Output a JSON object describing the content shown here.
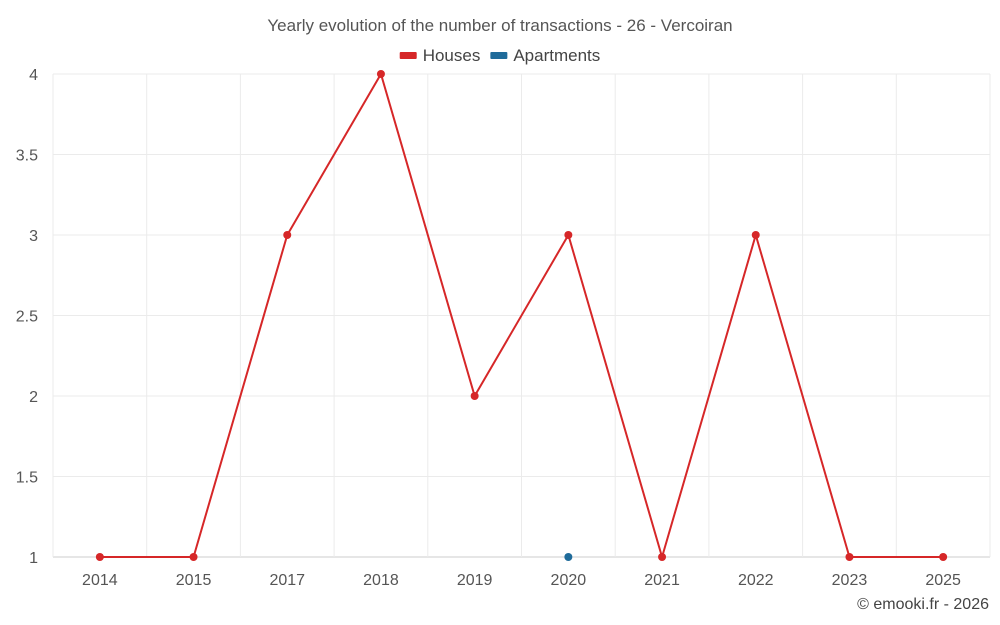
{
  "chart_data": {
    "type": "line",
    "title": "Yearly evolution of the number of transactions - 26 - Vercoiran",
    "categories": [
      "2014",
      "2015",
      "2017",
      "2018",
      "2019",
      "2020",
      "2021",
      "2022",
      "2023",
      "2025"
    ],
    "ylim": [
      1,
      4
    ],
    "yticks": [
      1,
      1.5,
      2,
      2.5,
      3,
      3.5,
      4
    ],
    "ytick_labels": [
      "1",
      "1.5",
      "2",
      "2.5",
      "3",
      "3.5",
      "4"
    ],
    "grid": true,
    "legend_position": "top-center",
    "series": [
      {
        "name": "Houses",
        "color": "#d62728",
        "values": [
          1,
          1,
          3,
          4,
          2,
          3,
          1,
          3,
          1,
          1
        ]
      },
      {
        "name": "Apartments",
        "color": "#1f6b9a",
        "values": [
          null,
          null,
          null,
          null,
          null,
          1,
          null,
          null,
          null,
          null
        ]
      }
    ]
  },
  "credit": "© emooki.fr - 2026"
}
